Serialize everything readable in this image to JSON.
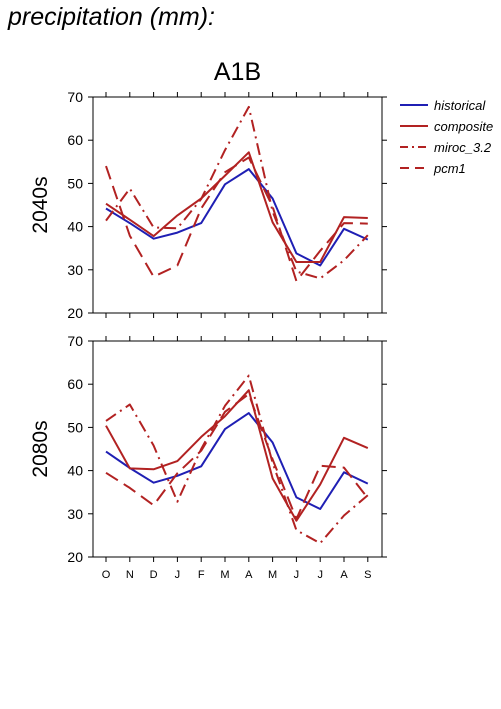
{
  "heading": "precipitation (mm):",
  "chart_data": {
    "type": "line",
    "title": "A1B",
    "categories": [
      "O",
      "N",
      "D",
      "J",
      "F",
      "M",
      "A",
      "M",
      "J",
      "J",
      "A",
      "S"
    ],
    "ylim": [
      20,
      70
    ],
    "yticks": [
      20,
      30,
      40,
      50,
      60,
      70
    ],
    "grid": false,
    "legend_position": "right",
    "colors": {
      "historical": "#1f1fb4",
      "composite": "#b22222",
      "axis": "#000000"
    },
    "legend": [
      {
        "name": "historical",
        "color": "#1f1fb4",
        "dash": "solid"
      },
      {
        "name": "composite",
        "color": "#b22222",
        "dash": "solid"
      },
      {
        "name": "miroc_3.2",
        "color": "#b22222",
        "dash": "dashdot"
      },
      {
        "name": "pcm1",
        "color": "#b22222",
        "dash": "dash"
      }
    ],
    "panels": [
      {
        "ylabel": "2040s",
        "series": [
          {
            "name": "historical",
            "values": [
              44.2,
              40.8,
              37.2,
              38.6,
              40.8,
              49.8,
              53.3,
              46.5,
              33.8,
              31.0,
              39.5,
              37.0
            ]
          },
          {
            "name": "composite",
            "values": [
              45.3,
              41.6,
              37.8,
              42.6,
              46.5,
              51.8,
              57.2,
              41.0,
              31.8,
              31.8,
              42.2,
              42.0
            ]
          },
          {
            "name": "miroc_3.2",
            "values": [
              41.4,
              48.8,
              39.8,
              39.6,
              46.4,
              57.7,
              67.7,
              43.5,
              29.6,
              28.0,
              32.2,
              38.0
            ]
          },
          {
            "name": "pcm1",
            "values": [
              54.0,
              37.9,
              28.4,
              31.0,
              44.2,
              52.6,
              56.0,
              44.6,
              27.4,
              34.4,
              40.8,
              40.7
            ]
          }
        ]
      },
      {
        "ylabel": "2080s",
        "series": [
          {
            "name": "historical",
            "values": [
              44.4,
              40.6,
              37.2,
              38.8,
              41.0,
              49.6,
              53.3,
              46.5,
              33.8,
              31.1,
              39.6,
              37.0
            ]
          },
          {
            "name": "composite",
            "values": [
              50.4,
              40.5,
              40.3,
              42.2,
              47.8,
              52.6,
              58.6,
              38.2,
              28.4,
              36.8,
              47.6,
              45.2
            ]
          },
          {
            "name": "miroc_3.2",
            "values": [
              51.5,
              55.3,
              45.8,
              32.8,
              45.0,
              55.0,
              62.0,
              41.8,
              26.2,
              23.2,
              29.6,
              34.3
            ]
          },
          {
            "name": "pcm1",
            "values": [
              39.5,
              36.0,
              32.0,
              39.4,
              44.6,
              53.6,
              57.7,
              42.6,
              28.8,
              41.1,
              40.7,
              33.6
            ]
          }
        ]
      }
    ]
  }
}
